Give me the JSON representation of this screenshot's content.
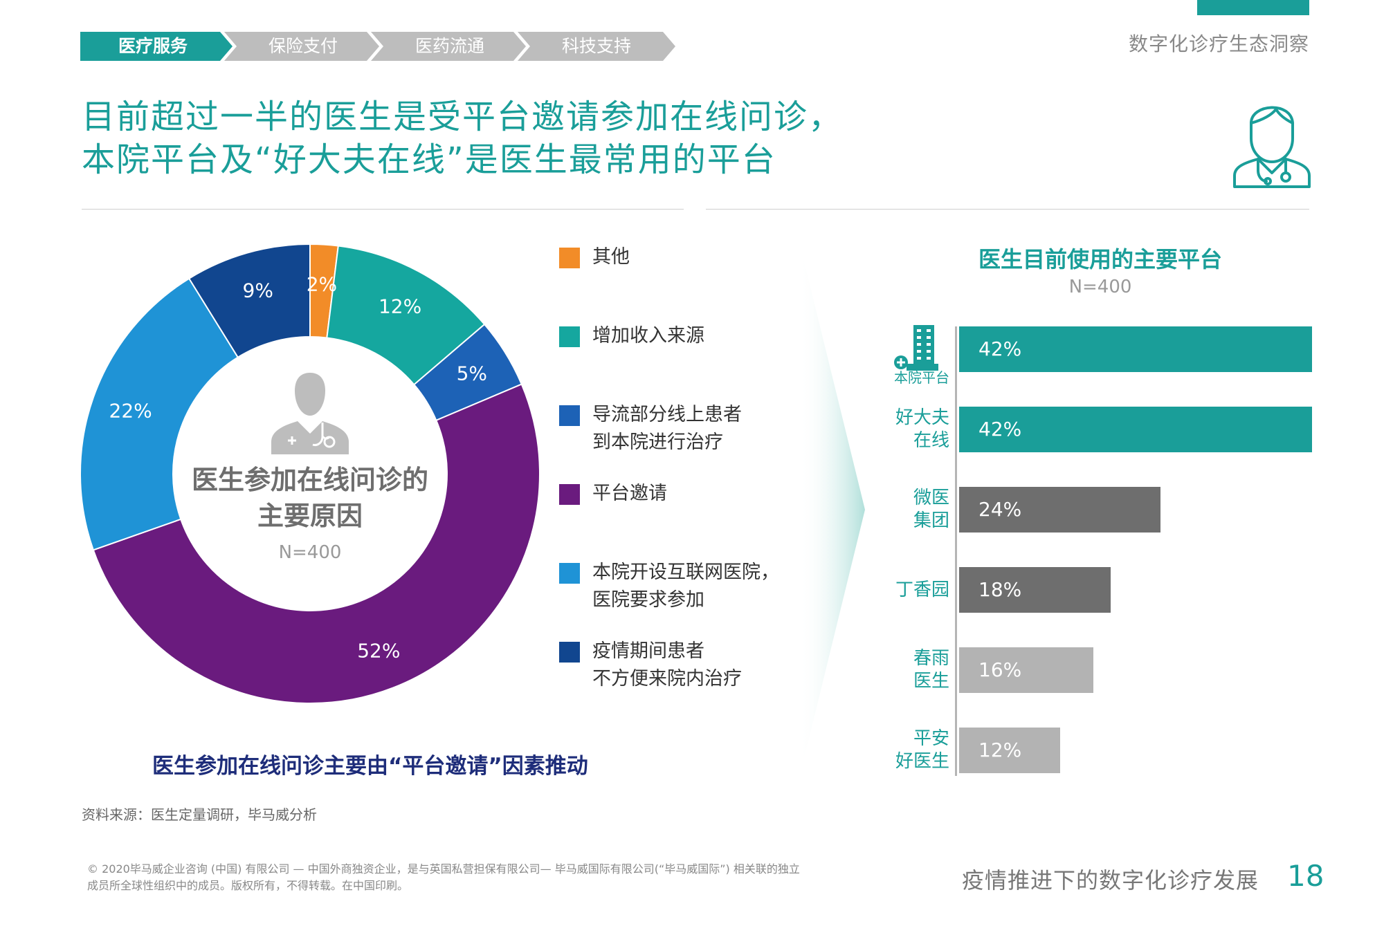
{
  "nav": {
    "tabs": [
      {
        "label": "医疗服务",
        "active": true
      },
      {
        "label": "保险支付",
        "active": false
      },
      {
        "label": "医药流通",
        "active": false
      },
      {
        "label": "科技支持",
        "active": false
      }
    ]
  },
  "header": {
    "section_title": "数字化诊疗生态洞察",
    "headline_line1": "目前超过一半的医生是受平台邀请参加在线问诊，",
    "headline_line2": "本院平台及“好大夫在线”是医生最常用的平台",
    "icon": "doctor-icon"
  },
  "colors": {
    "teal": "#1a9e99",
    "orange": "#f28c28",
    "blue": "#1d62b6",
    "purple": "#6a1b7e",
    "light_blue": "#1f93d6",
    "dark_blue": "#11468f",
    "dark_gray": "#6e6e6e",
    "mid_gray": "#b3b3b3",
    "navy_text": "#1e2d7a"
  },
  "chart_data": [
    {
      "type": "pie",
      "variant": "donut",
      "title": "医生参加在线问诊的主要原因",
      "sample": "N=400",
      "center_icon": "doctor-silhouette-icon",
      "slices": [
        {
          "label": "其他",
          "value": 2,
          "display": "2%",
          "color": "#f28c28"
        },
        {
          "label": "增加收入来源",
          "value": 12,
          "display": "12%",
          "color": "#15a79f"
        },
        {
          "label": "导流部分线上患者到本院进行治疗",
          "value": 5,
          "display": "5%",
          "color": "#1d62b6"
        },
        {
          "label": "平台邀请",
          "value": 52,
          "display": "52%",
          "color": "#6a1b7e"
        },
        {
          "label": "本院开设互联网医院，医院要求参加",
          "value": 22,
          "display": "22%",
          "color": "#1f93d6"
        },
        {
          "label": "疫情期间患者不方便来院内治疗",
          "value": 9,
          "display": "9%",
          "color": "#11468f"
        }
      ],
      "legend": [
        {
          "lines": [
            "其他"
          ],
          "color": "#f28c28"
        },
        {
          "lines": [
            "增加收入来源"
          ],
          "color": "#15a79f"
        },
        {
          "lines": [
            "导流部分线上患者",
            "到本院进行治疗"
          ],
          "color": "#1d62b6"
        },
        {
          "lines": [
            "平台邀请"
          ],
          "color": "#6a1b7e"
        },
        {
          "lines": [
            "本院开设互联网医院，",
            "医院要求参加"
          ],
          "color": "#1f93d6"
        },
        {
          "lines": [
            "疫情期间患者",
            "不方便来院内治疗"
          ],
          "color": "#11468f"
        }
      ],
      "caption": "医生参加在线问诊主要由“平台邀请”因素推动"
    },
    {
      "type": "bar",
      "orientation": "horizontal",
      "title": "医生目前使用的主要平台",
      "sample": "N=400",
      "xlim": [
        0,
        42
      ],
      "bars": [
        {
          "category_lines": [
            "本院平台"
          ],
          "value": 42,
          "display": "42%",
          "color": "#1a9e99",
          "icon": "hospital-building-icon"
        },
        {
          "category_lines": [
            "好大夫",
            "在线"
          ],
          "value": 42,
          "display": "42%",
          "color": "#1a9e99"
        },
        {
          "category_lines": [
            "微医",
            "集团"
          ],
          "value": 24,
          "display": "24%",
          "color": "#6e6e6e"
        },
        {
          "category_lines": [
            "丁香园"
          ],
          "value": 18,
          "display": "18%",
          "color": "#6e6e6e"
        },
        {
          "category_lines": [
            "春雨",
            "医生"
          ],
          "value": 16,
          "display": "16%",
          "color": "#b3b3b3"
        },
        {
          "category_lines": [
            "平安",
            "好医生"
          ],
          "value": 12,
          "display": "12%",
          "color": "#b3b3b3"
        }
      ]
    }
  ],
  "footer": {
    "source": "资料来源：医生定量调研，毕马威分析",
    "copyright_line1": "© 2020毕马威企业咨询 (中国) 有限公司 — 中国外商独资企业，是与英国私营担保有限公司— 毕马威国际有限公司(“毕马威国际”) 相关联的独立",
    "copyright_line2": "成员所全球性组织中的成员。版权所有，不得转载。在中国印刷。",
    "report_title": "疫情推进下的数字化诊疗发展",
    "page_number": "18"
  }
}
